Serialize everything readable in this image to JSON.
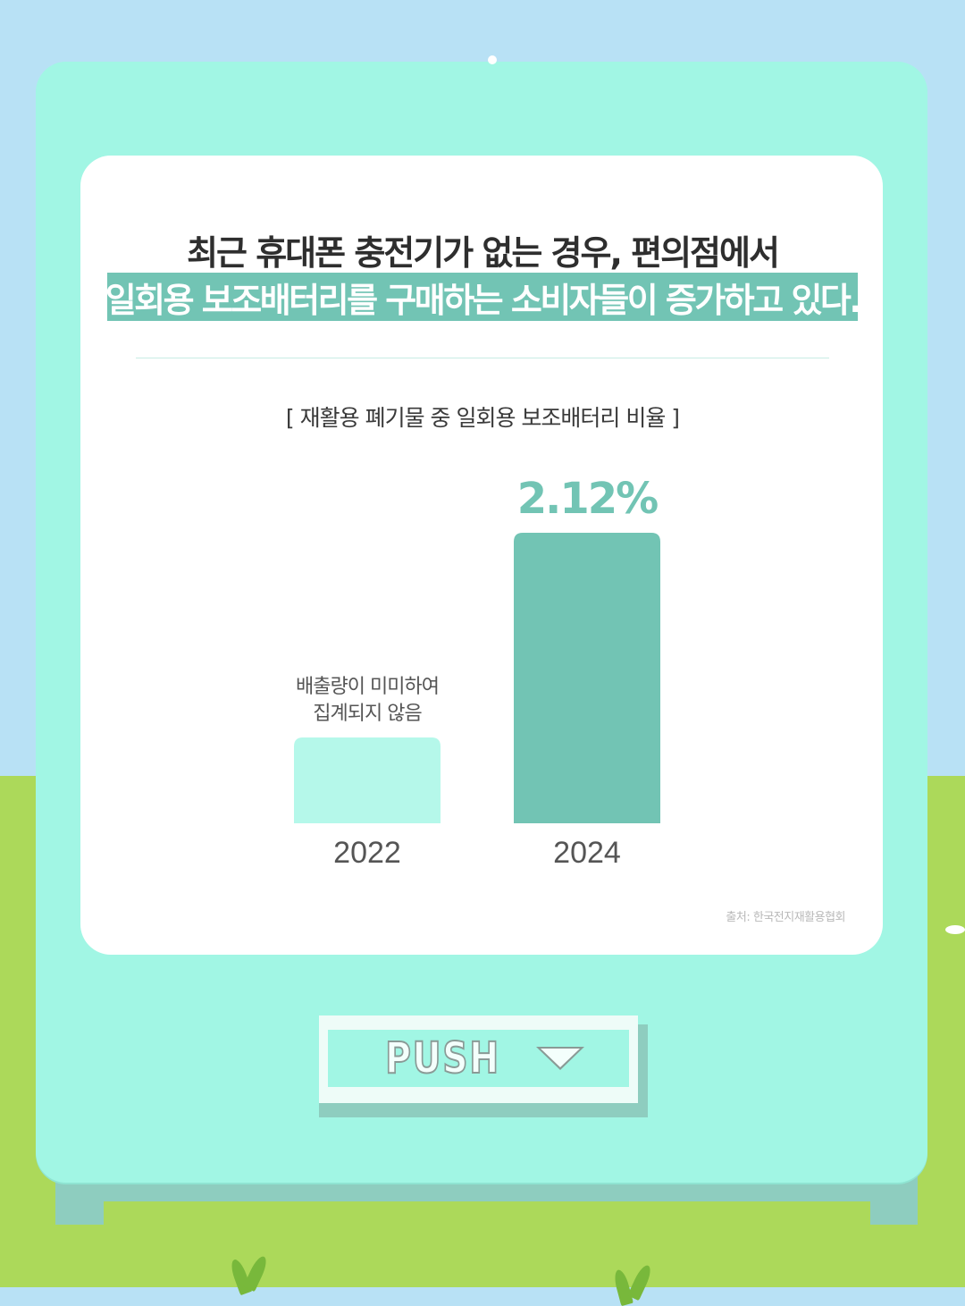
{
  "headline": {
    "line1": "최근 휴대폰 충전기가 없는 경우, 편의점에서",
    "line2": "일회용 보조배터리를 구매하는 소비자들이 증가하고 있다."
  },
  "chart_data": {
    "type": "bar",
    "title": "[ 재활용 폐기물 중 일회용 보조배터리 비율 ]",
    "categories": [
      "2022",
      "2024"
    ],
    "values": [
      null,
      2.12
    ],
    "value_labels": [
      "",
      "2.12%"
    ],
    "annotations": [
      "배출량이 미미하여",
      "집계되지 않음"
    ],
    "colors": [
      "#b5f8ea",
      "#72c4b4"
    ],
    "label_color": "#72c4b4",
    "grid": false
  },
  "source": "출처: 한국전지재활용협회",
  "push_button": {
    "label": "PUSH",
    "icon": "triangle-down-icon"
  },
  "colors": {
    "accent": "#72c4b4",
    "machine": "#a1f6e4",
    "sky": "#b8e1f5",
    "grass": "#acd95a"
  }
}
